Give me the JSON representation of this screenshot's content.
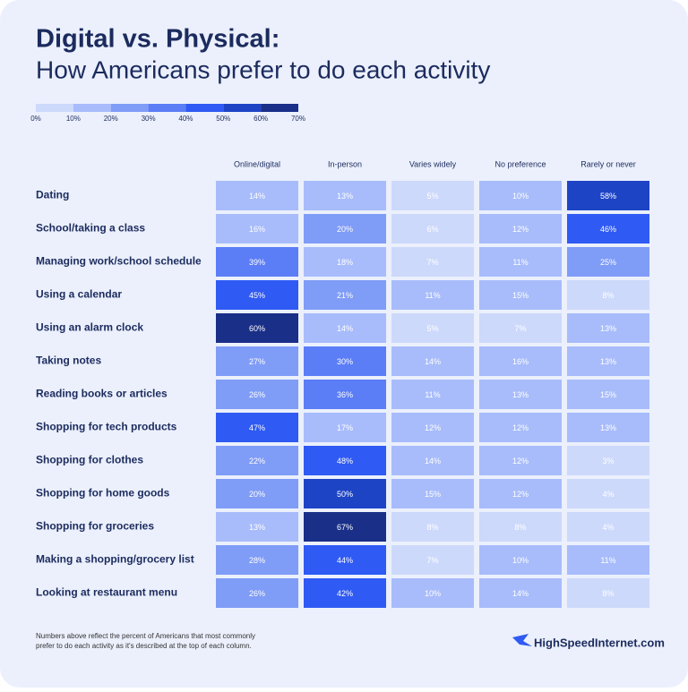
{
  "chart_data": {
    "type": "heatmap",
    "title": "Digital vs. Physical:",
    "subtitle": "How Americans prefer to do each activity",
    "columns": [
      "Online/digital",
      "In-person",
      "Varies widely",
      "No preference",
      "Rarely or never"
    ],
    "rows": [
      "Dating",
      "School/taking a class",
      "Managing work/school schedule",
      "Using a calendar",
      "Using an alarm clock",
      "Taking notes",
      "Reading books or articles",
      "Shopping for tech products",
      "Shopping for clothes",
      "Shopping for home goods",
      "Shopping for groceries",
      "Making a shopping/grocery list",
      "Looking at restaurant menu"
    ],
    "values": [
      [
        14,
        13,
        5,
        10,
        58
      ],
      [
        16,
        20,
        6,
        12,
        46
      ],
      [
        39,
        18,
        7,
        11,
        25
      ],
      [
        45,
        21,
        11,
        15,
        8
      ],
      [
        60,
        14,
        5,
        7,
        13
      ],
      [
        27,
        30,
        14,
        16,
        13
      ],
      [
        26,
        36,
        11,
        13,
        15
      ],
      [
        47,
        17,
        12,
        12,
        13
      ],
      [
        22,
        48,
        14,
        12,
        3
      ],
      [
        20,
        50,
        15,
        12,
        4
      ],
      [
        13,
        67,
        8,
        8,
        4
      ],
      [
        28,
        44,
        7,
        10,
        11
      ],
      [
        26,
        42,
        10,
        14,
        8
      ]
    ],
    "value_labels": [
      [
        "14%",
        "13%",
        "5%",
        "10%",
        "58%"
      ],
      [
        "16%",
        "20%",
        "6%",
        "12%",
        "46%"
      ],
      [
        "39%",
        "18%",
        "7%",
        "11%",
        "25%"
      ],
      [
        "45%",
        "21%",
        "11%",
        "15%",
        "8%"
      ],
      [
        "60%",
        "14%",
        "5%",
        "7%",
        "13%"
      ],
      [
        "27%",
        "30%",
        "14%",
        "16%",
        "13%"
      ],
      [
        "26%",
        "36%",
        "11%",
        "13%",
        "15%"
      ],
      [
        "47%",
        "17%",
        "12%",
        "12%",
        "13%"
      ],
      [
        "22%",
        "48%",
        "14%",
        "12%",
        "3%"
      ],
      [
        "20%",
        "50%",
        "15%",
        "12%",
        "4%"
      ],
      [
        "13%",
        "67%",
        "8%",
        "8%",
        "4%"
      ],
      [
        "28%",
        "44%",
        "7%",
        "10%",
        "11%"
      ],
      [
        "26%",
        "42%",
        "10%",
        "14%",
        "8%"
      ]
    ],
    "legend_ticks": [
      {
        "value": 0,
        "label": "0%"
      },
      {
        "value": 10,
        "label": "10%"
      },
      {
        "value": 20,
        "label": "20%"
      },
      {
        "value": 30,
        "label": "30%"
      },
      {
        "value": 40,
        "label": "40%"
      },
      {
        "value": 50,
        "label": "50%"
      },
      {
        "value": 60,
        "label": "60%"
      },
      {
        "value": 70,
        "label": "70%"
      }
    ],
    "colors": [
      "#cdd9fb",
      "#a8bcfb",
      "#7f9cf7",
      "#5b7df6",
      "#2f5af3",
      "#1e44c6",
      "#1a2f88"
    ],
    "footnote": [
      "Numbers above reflect the percent of Americans that most commonly",
      "prefer to do each activity as it's described at the top of each column."
    ],
    "source": "HighSpeedInternet.com"
  }
}
